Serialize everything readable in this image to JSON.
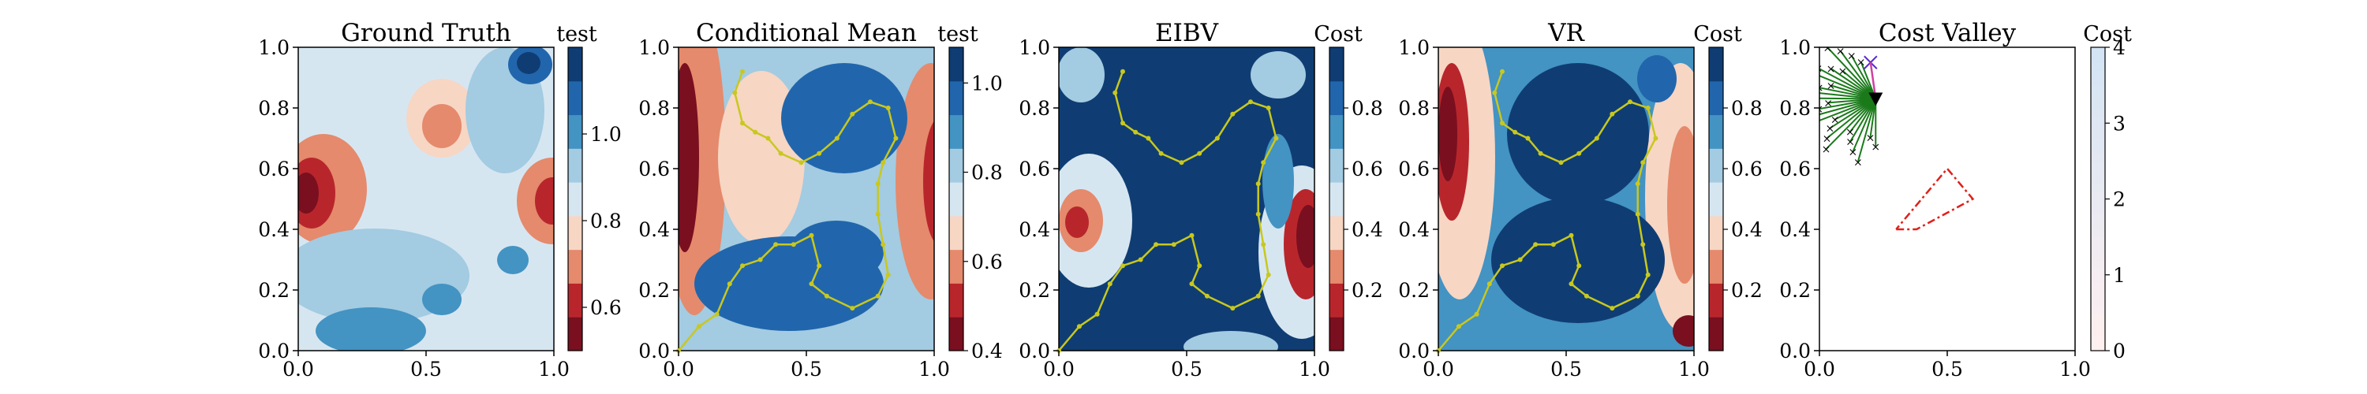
{
  "chart_data": [
    {
      "type": "heatmap",
      "title": "Ground Truth",
      "xlim": [
        0,
        1
      ],
      "ylim": [
        0,
        1
      ],
      "xticks": [
        "0.0",
        "0.5",
        "1.0"
      ],
      "yticks": [
        "0.0",
        "0.2",
        "0.4",
        "0.6",
        "0.8",
        "1.0"
      ],
      "colormap": "RdBu",
      "colorbar": {
        "label": "test",
        "range": [
          0.5,
          1.2
        ],
        "ticks": [
          "0.6",
          "0.8",
          "1.0"
        ]
      }
    },
    {
      "type": "heatmap",
      "title": "Conditional Mean",
      "xlim": [
        0,
        1
      ],
      "ylim": [
        0,
        1
      ],
      "xticks": [
        "0.0",
        "0.5",
        "1.0"
      ],
      "yticks": [
        "0.0",
        "0.2",
        "0.4",
        "0.6",
        "0.8",
        "1.0"
      ],
      "colormap": "RdBu",
      "colorbar": {
        "label": "test",
        "range": [
          0.4,
          1.08
        ],
        "ticks": [
          "0.4",
          "0.6",
          "0.8",
          "1.0"
        ]
      },
      "path_color": "#c8c81e",
      "path": [
        [
          0,
          0
        ],
        [
          0.08,
          0.08
        ],
        [
          0.15,
          0.12
        ],
        [
          0.2,
          0.22
        ],
        [
          0.25,
          0.28
        ],
        [
          0.32,
          0.3
        ],
        [
          0.38,
          0.35
        ],
        [
          0.45,
          0.35
        ],
        [
          0.52,
          0.38
        ],
        [
          0.55,
          0.28
        ],
        [
          0.52,
          0.22
        ],
        [
          0.58,
          0.18
        ],
        [
          0.68,
          0.14
        ],
        [
          0.78,
          0.18
        ],
        [
          0.82,
          0.25
        ],
        [
          0.8,
          0.35
        ],
        [
          0.78,
          0.45
        ],
        [
          0.78,
          0.55
        ],
        [
          0.8,
          0.62
        ],
        [
          0.85,
          0.7
        ],
        [
          0.82,
          0.8
        ],
        [
          0.75,
          0.82
        ],
        [
          0.68,
          0.78
        ],
        [
          0.62,
          0.7
        ],
        [
          0.55,
          0.65
        ],
        [
          0.48,
          0.62
        ],
        [
          0.4,
          0.65
        ],
        [
          0.35,
          0.7
        ],
        [
          0.3,
          0.72
        ],
        [
          0.25,
          0.75
        ],
        [
          0.22,
          0.85
        ],
        [
          0.25,
          0.92
        ]
      ]
    },
    {
      "type": "heatmap",
      "title": "EIBV",
      "xlim": [
        0,
        1
      ],
      "ylim": [
        0,
        1
      ],
      "xticks": [
        "0.0",
        "0.5",
        "1.0"
      ],
      "yticks": [
        "0.0",
        "0.2",
        "0.4",
        "0.6",
        "0.8",
        "1.0"
      ],
      "colormap": "RdBu",
      "colorbar": {
        "label": "Cost",
        "range": [
          0.0,
          1.0
        ],
        "ticks": [
          "0.2",
          "0.4",
          "0.6",
          "0.8"
        ]
      },
      "path_color": "#c8c81e"
    },
    {
      "type": "heatmap",
      "title": "VR",
      "xlim": [
        0,
        1
      ],
      "ylim": [
        0,
        1
      ],
      "xticks": [
        "0.0",
        "0.5",
        "1.0"
      ],
      "yticks": [
        "0.0",
        "0.2",
        "0.4",
        "0.6",
        "0.8",
        "1.0"
      ],
      "colormap": "RdBu",
      "colorbar": {
        "label": "Cost",
        "range": [
          0.0,
          1.0
        ],
        "ticks": [
          "0.2",
          "0.4",
          "0.6",
          "0.8"
        ]
      },
      "path_color": "#c8c81e"
    },
    {
      "type": "scatter",
      "title": "Cost Valley",
      "xlim": [
        0,
        1
      ],
      "ylim": [
        0,
        1
      ],
      "xticks": [
        "0.0",
        "0.5",
        "1.0"
      ],
      "yticks": [
        "0.0",
        "0.2",
        "0.4",
        "0.6",
        "0.8",
        "1.0"
      ],
      "colormap": "RdBu",
      "colorbar": {
        "label": "Cost",
        "range": [
          0,
          4
        ],
        "ticks": [
          "0",
          "1",
          "2",
          "3",
          "4"
        ]
      },
      "polygon": [
        [
          0.3,
          0.4
        ],
        [
          0.38,
          0.4
        ],
        [
          0.6,
          0.5
        ],
        [
          0.5,
          0.6
        ],
        [
          0.3,
          0.4
        ]
      ],
      "polygon_color": "#e0201a",
      "robot": [
        0.22,
        0.83
      ],
      "target_marker": [
        0.2,
        0.95
      ],
      "candidates_color": "#1a7a1a"
    }
  ]
}
